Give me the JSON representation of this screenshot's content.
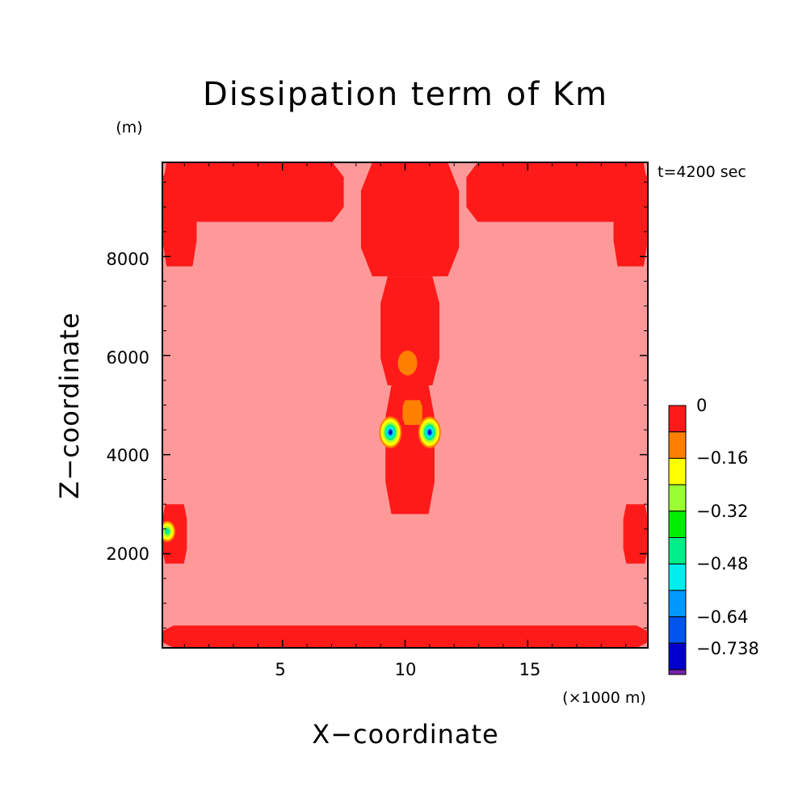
{
  "chart_data": {
    "type": "heatmap",
    "title": "Dissipation term of Km",
    "xlabel": "X−coordinate",
    "ylabel": "Z−coordinate",
    "x_unit": "(×1000 m)",
    "y_unit": "(m)",
    "time_label": "t=4200 sec",
    "xlim": [
      0.1,
      19.9
    ],
    "ylim": [
      100,
      9900
    ],
    "x_ticks": [
      5,
      10,
      15
    ],
    "x_tick_labels": [
      "5",
      "10",
      "15"
    ],
    "y_ticks": [
      2000,
      4000,
      6000,
      8000
    ],
    "y_tick_labels": [
      "2000",
      "4000",
      "6000",
      "8000"
    ],
    "background_level_color": "#ff9999",
    "colorbar": {
      "levels": [
        0,
        -0.08,
        -0.16,
        -0.24,
        -0.32,
        -0.4,
        -0.48,
        -0.56,
        -0.64,
        -0.72,
        -0.738
      ],
      "labels": [
        "0",
        "−0.16",
        "−0.32",
        "−0.48",
        "−0.64",
        "−0.738"
      ],
      "colors": [
        "#ff1a1a",
        "#ff8000",
        "#ffff00",
        "#99ff33",
        "#00ee00",
        "#00ee88",
        "#00eeee",
        "#0099ff",
        "#0055ee",
        "#0000cc",
        "#7722aa"
      ]
    },
    "regions": [
      {
        "name": "top-band-left",
        "x": [
          0.1,
          7.5
        ],
        "z": [
          8700,
          9900
        ],
        "level": -0.02
      },
      {
        "name": "top-band-right",
        "x": [
          12.5,
          19.9
        ],
        "z": [
          8700,
          9900
        ],
        "level": -0.02
      },
      {
        "name": "top-left-corner",
        "x": [
          0.1,
          1.5
        ],
        "z": [
          7800,
          9900
        ],
        "level": -0.02
      },
      {
        "name": "top-right-corner",
        "x": [
          18.5,
          19.9
        ],
        "z": [
          7800,
          9900
        ],
        "level": -0.02
      },
      {
        "name": "central-column-upper",
        "x": [
          8.2,
          12.2
        ],
        "z": [
          7600,
          9900
        ],
        "level": -0.02
      },
      {
        "name": "central-column-mid",
        "x": [
          9.0,
          11.4
        ],
        "z": [
          5400,
          7600
        ],
        "level": -0.02
      },
      {
        "name": "central-column-lower",
        "x": [
          9.2,
          11.2
        ],
        "z": [
          2800,
          5400
        ],
        "level": -0.02
      },
      {
        "name": "bottom-band",
        "x": [
          0.1,
          19.9
        ],
        "z": [
          100,
          550
        ],
        "level": -0.02
      },
      {
        "name": "left-edge-patch",
        "x": [
          0.1,
          1.1
        ],
        "z": [
          1800,
          3000
        ],
        "level": -0.02
      },
      {
        "name": "right-edge-patch",
        "x": [
          18.9,
          19.9
        ],
        "z": [
          1800,
          3000
        ],
        "level": -0.02
      },
      {
        "name": "cold-spot-left",
        "x": [
          9.4
        ],
        "z": [
          4450
        ],
        "level": -0.738
      },
      {
        "name": "cold-spot-right",
        "x": [
          11.0
        ],
        "z": [
          4450
        ],
        "level": -0.738
      },
      {
        "name": "orange-core",
        "x": [
          9.9,
          10.7
        ],
        "z": [
          4600,
          5100
        ],
        "level": -0.1
      },
      {
        "name": "orange-tip-upper",
        "x": [
          10.1
        ],
        "z": [
          5600,
          6100
        ],
        "level": -0.1
      },
      {
        "name": "left-edge-spot",
        "x": [
          0.3
        ],
        "z": [
          2450
        ],
        "level": -0.36
      }
    ]
  }
}
